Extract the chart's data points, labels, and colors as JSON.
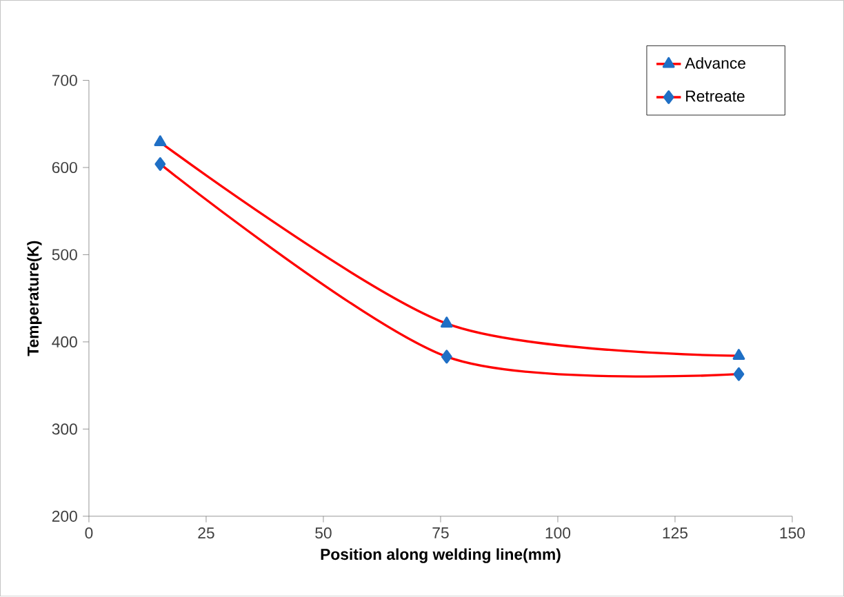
{
  "chart_data": {
    "type": "line",
    "xlabel": "Position along  welding line(mm)",
    "ylabel": "Temperature(K)",
    "xlim": [
      0,
      150
    ],
    "xticks": [
      0,
      25,
      50,
      75,
      100,
      125,
      150
    ],
    "ylim": [
      200,
      700
    ],
    "yticks": [
      200,
      300,
      400,
      500,
      600,
      700
    ],
    "grid": false,
    "legend": "top right",
    "line_style": "solid",
    "series": [
      {
        "name": "Advance",
        "color": "#ff0000",
        "marker": "triangle",
        "x": [
          15.2,
          76.3,
          138.6
        ],
        "values": [
          629,
          421,
          384
        ]
      },
      {
        "name": "Retreate",
        "color": "#ff0000",
        "marker": "diamond",
        "x": [
          15.2,
          76.3,
          138.6
        ],
        "values": [
          604,
          383,
          363
        ]
      }
    ]
  }
}
